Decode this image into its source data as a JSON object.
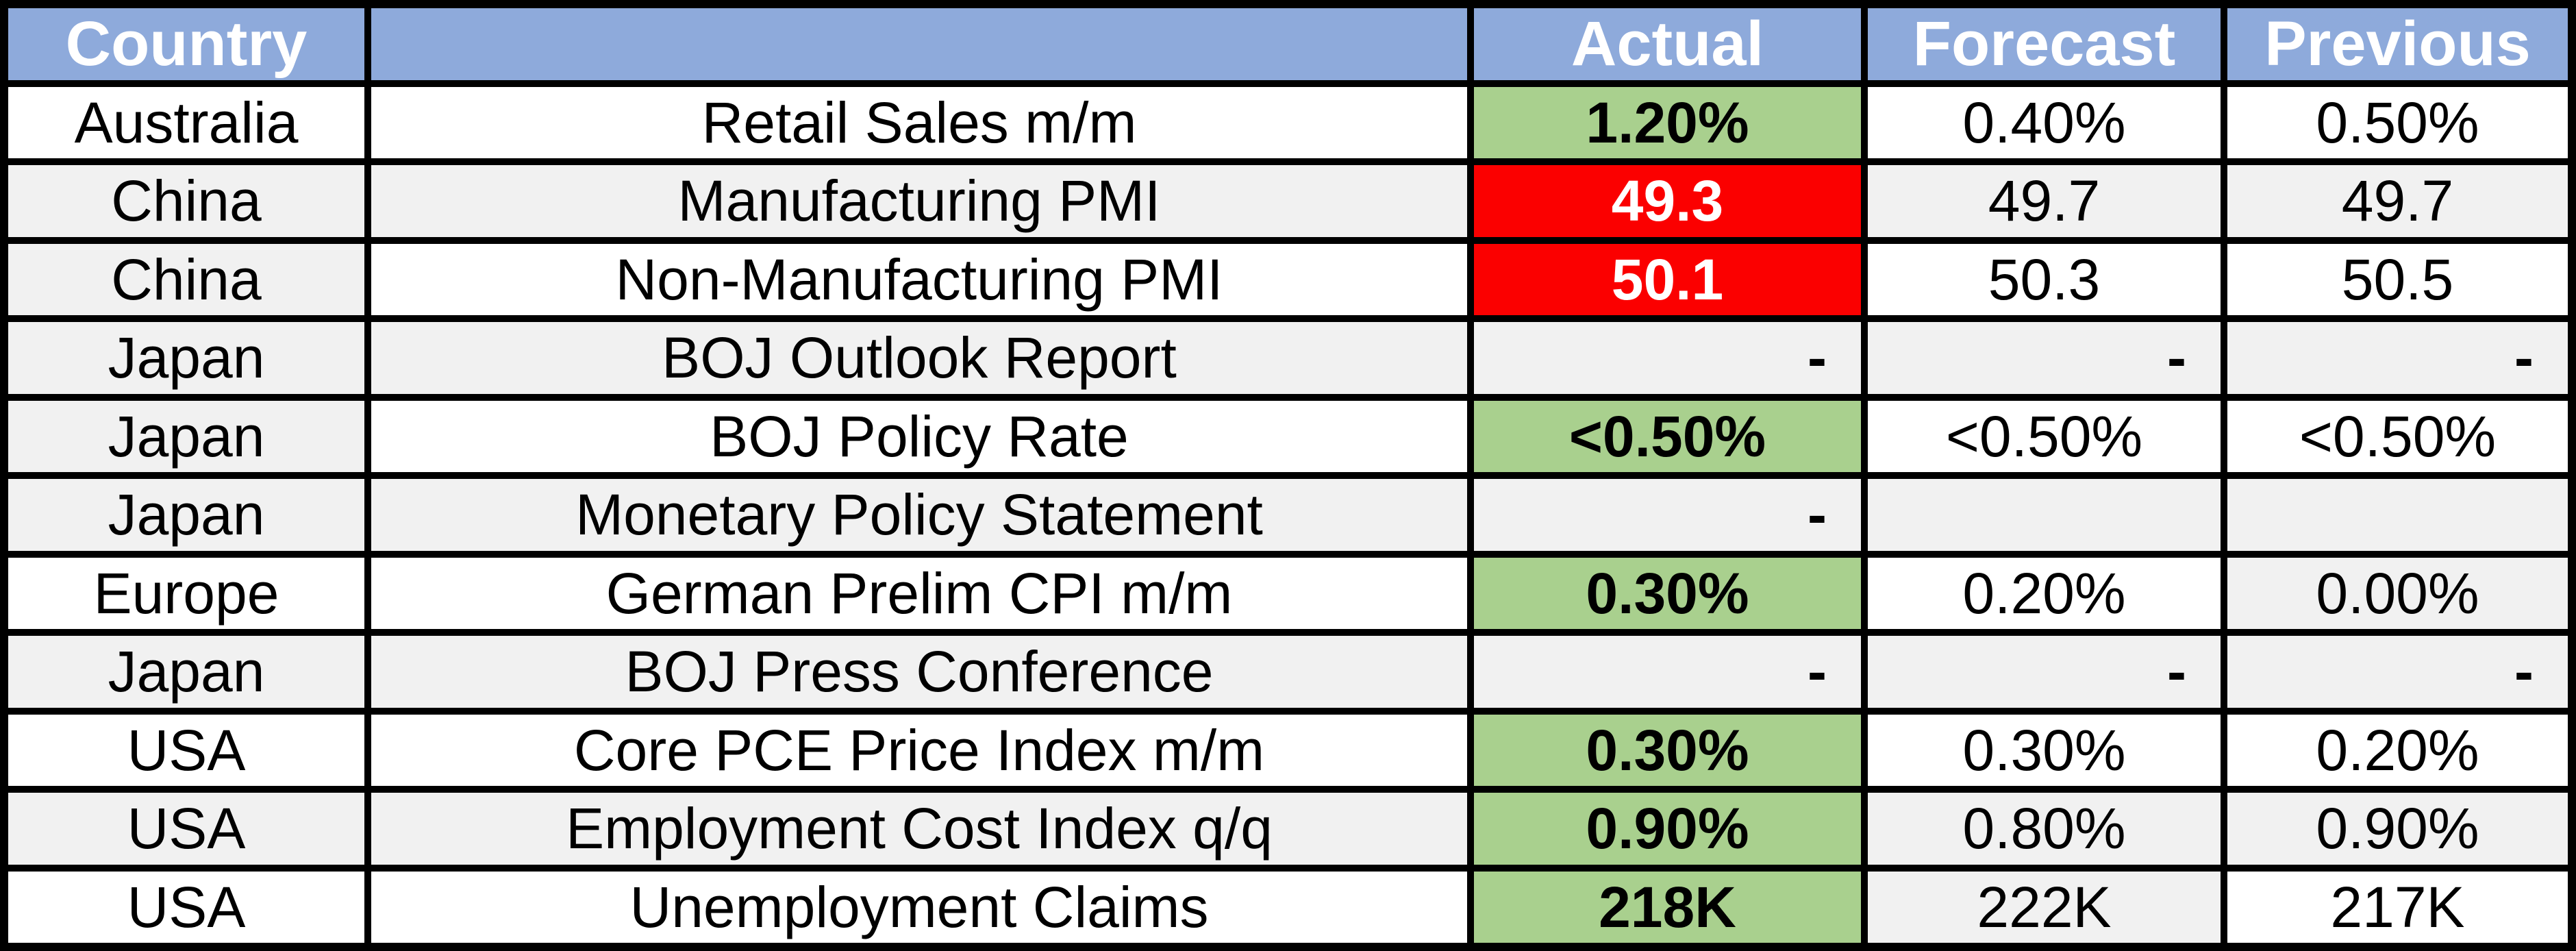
{
  "colors": {
    "header_bg": "#8EAADB",
    "header_text": "#FFFFFF",
    "row_white": "#FFFFFF",
    "row_gray": "#F1F1F1",
    "positive_green": "#A9D08E",
    "negative_red": "#FB0000",
    "border_black": "#000000",
    "text_black": "#000000"
  },
  "chart_data": {
    "type": "table",
    "title": "Economic calendar results: Actual vs Forecast vs Previous",
    "columns": [
      "Country",
      "",
      "Actual",
      "Forecast",
      "Previous"
    ],
    "rows": [
      [
        "Australia",
        "Retail Sales m/m",
        "1.20%",
        "0.40%",
        "0.50%"
      ],
      [
        "China",
        "Manufacturing PMI",
        "49.3",
        "49.7",
        "49.7"
      ],
      [
        "China",
        "Non-Manufacturing PMI",
        "50.1",
        "50.3",
        "50.5"
      ],
      [
        "Japan",
        "BOJ Outlook Report",
        "-",
        "-",
        "-"
      ],
      [
        "Japan",
        "BOJ Policy Rate",
        "<0.50%",
        "<0.50%",
        "<0.50%"
      ],
      [
        "Japan",
        "Monetary Policy Statement",
        "-",
        "",
        ""
      ],
      [
        "Europe",
        "German Prelim CPI m/m",
        "0.30%",
        "0.20%",
        "0.00%"
      ],
      [
        "Japan",
        "BOJ Press Conference",
        "-",
        "-",
        "-"
      ],
      [
        "USA",
        "Core PCE Price Index m/m",
        "0.30%",
        "0.30%",
        "0.20%"
      ],
      [
        "USA",
        "Employment Cost Index q/q",
        "0.90%",
        "0.80%",
        "0.90%"
      ],
      [
        "USA",
        "Unemployment Claims",
        "218K",
        "222K",
        "217K"
      ]
    ],
    "cell_backgrounds": [
      [
        "white",
        "white",
        "green",
        "white",
        "white"
      ],
      [
        "gray",
        "gray",
        "red",
        "gray",
        "gray"
      ],
      [
        "gray",
        "white",
        "red",
        "white",
        "white"
      ],
      [
        "gray",
        "gray",
        "gray",
        "gray",
        "gray"
      ],
      [
        "gray",
        "white",
        "green",
        "white",
        "white"
      ],
      [
        "gray",
        "gray",
        "gray",
        "gray",
        "gray"
      ],
      [
        "white",
        "white",
        "green",
        "white",
        "gray"
      ],
      [
        "gray",
        "gray",
        "gray",
        "gray",
        "gray"
      ],
      [
        "white",
        "white",
        "green",
        "white",
        "white"
      ],
      [
        "gray",
        "gray",
        "green",
        "gray",
        "gray"
      ],
      [
        "white",
        "white",
        "green",
        "gray",
        "white"
      ]
    ]
  }
}
